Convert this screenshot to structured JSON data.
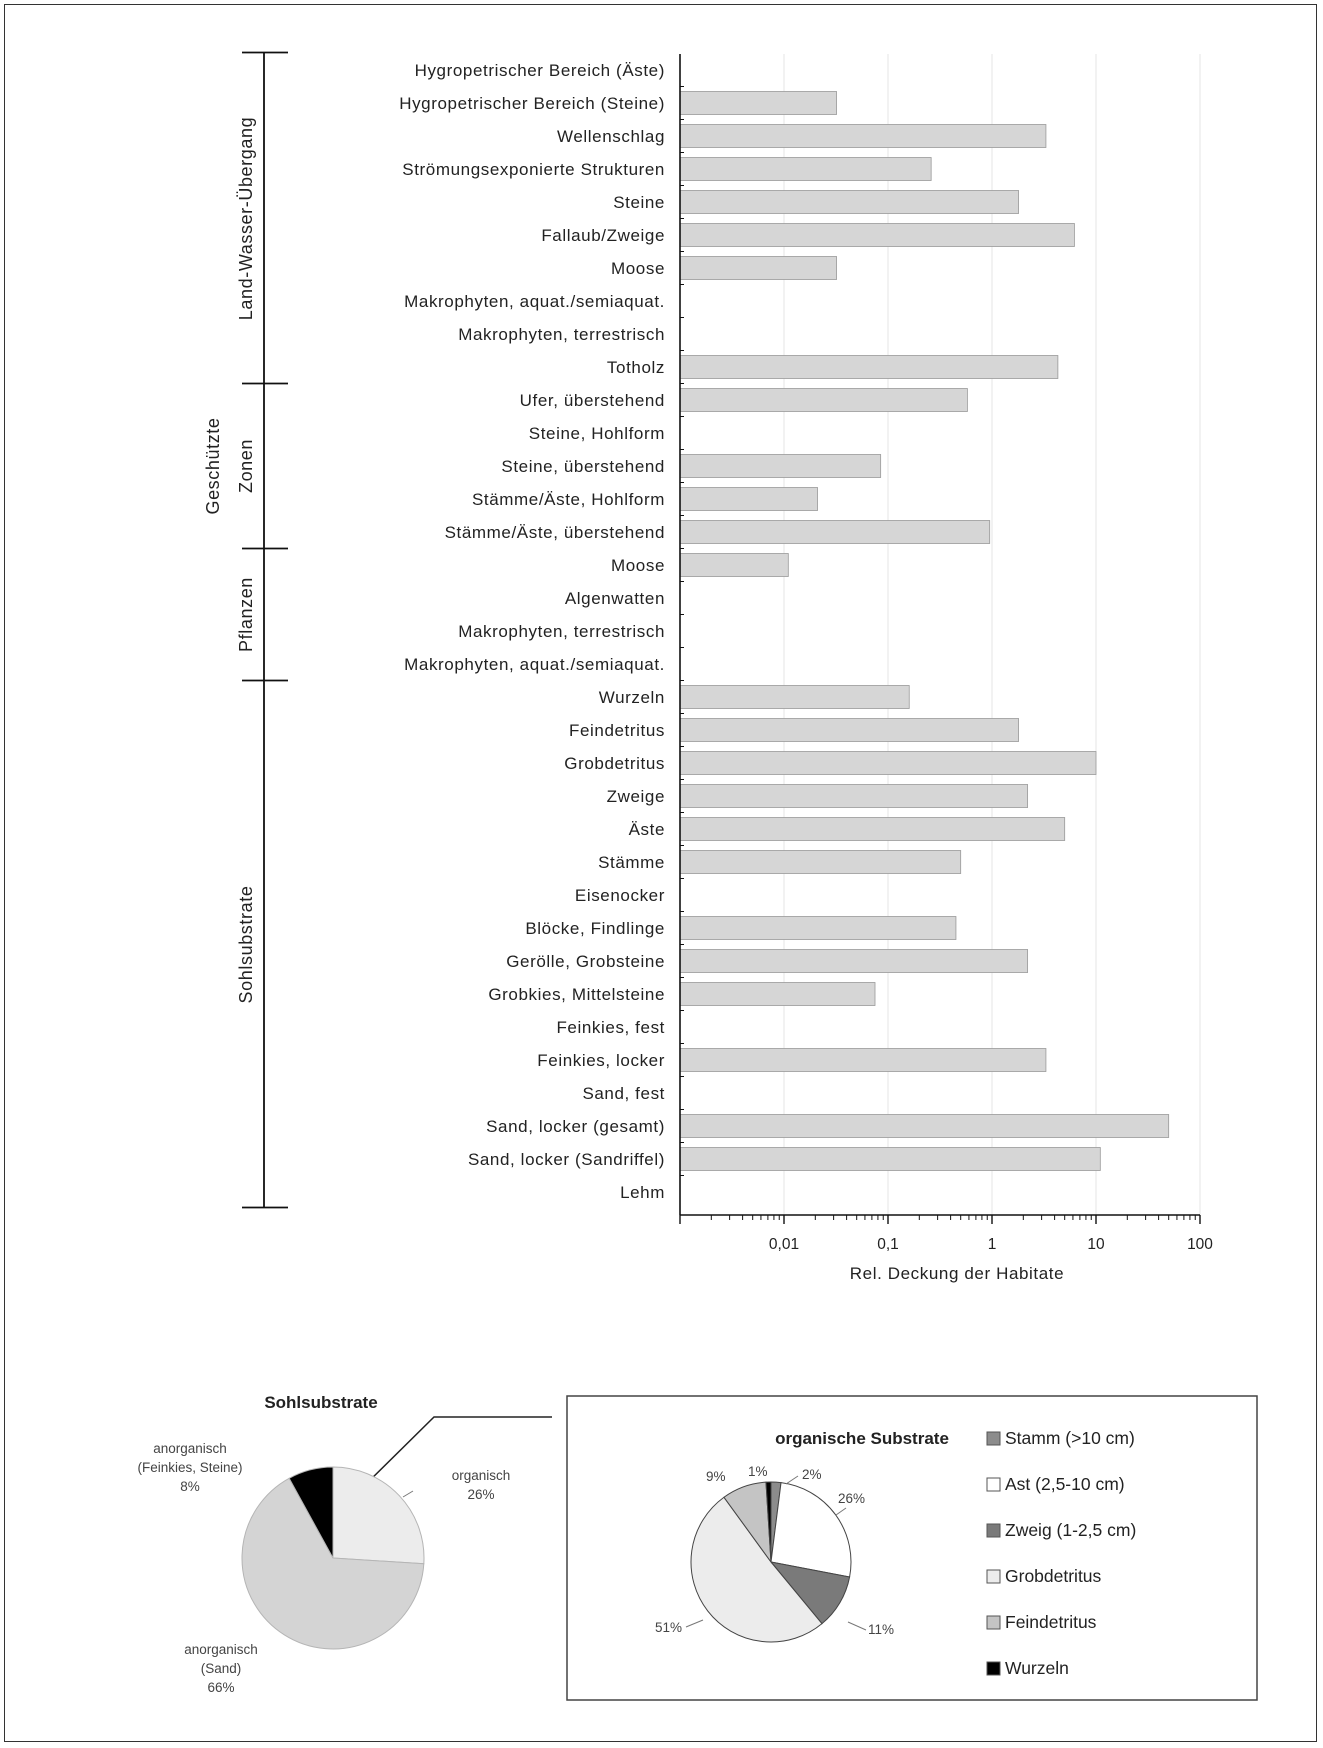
{
  "chart_data": [
    {
      "type": "bar",
      "orientation": "horizontal",
      "xscale": "log",
      "xlim": [
        0.001,
        100
      ],
      "xlabel": "Rel. Deckung der Habitate",
      "xticks": [
        "0,01",
        "0,1",
        "1",
        "10",
        "100"
      ],
      "grid": true,
      "bar_color": "#d6d6d6",
      "groups": [
        {
          "name": "Land-Wasser-Übergang",
          "lines": [
            "Land-Wasser-Übergang"
          ],
          "first": 0,
          "last": 9
        },
        {
          "name": "Geschützte Zonen",
          "lines": [
            "Geschützte",
            "Zonen"
          ],
          "first": 10,
          "last": 14
        },
        {
          "name": "Pflanzen",
          "lines": [
            "Pflanzen"
          ],
          "first": 15,
          "last": 18
        },
        {
          "name": "Sohlsubstrate",
          "lines": [
            "Sohlsubstrate"
          ],
          "first": 19,
          "last": 34
        }
      ],
      "categories": [
        "Hygropetrischer Bereich (Äste)",
        "Hygropetrischer Bereich (Steine)",
        "Wellenschlag",
        "Strömungsexponierte Strukturen",
        "Steine",
        "Fallaub/Zweige",
        "Moose",
        "Makrophyten, aquat./semiaquat.",
        "Makrophyten, terrestrisch",
        "Totholz",
        "Ufer, überstehend",
        "Steine, Hohlform",
        "Steine, überstehend",
        "Stämme/Äste, Hohlform",
        "Stämme/Äste, überstehend",
        "Moose",
        "Algenwatten",
        "Makrophyten, terrestrisch",
        "Makrophyten, aquat./semiaquat.",
        "Wurzeln",
        "Feindetritus",
        "Grobdetritus",
        "Zweige",
        "Äste",
        "Stämme",
        "Eisenocker",
        "Blöcke, Findlinge",
        "Gerölle, Grobsteine",
        "Grobkies, Mittelsteine",
        "Feinkies, fest",
        "Feinkies, locker",
        "Sand, fest",
        "Sand, locker (gesamt)",
        "Sand, locker (Sandriffel)",
        "Lehm"
      ],
      "values": [
        null,
        0.032,
        3.3,
        0.26,
        1.8,
        6.2,
        0.032,
        null,
        null,
        4.3,
        0.58,
        null,
        0.085,
        0.021,
        0.95,
        0.011,
        null,
        null,
        null,
        0.16,
        1.8,
        10.0,
        2.2,
        5.0,
        0.5,
        null,
        0.45,
        2.2,
        0.075,
        null,
        3.3,
        null,
        50.0,
        11.0,
        null
      ]
    },
    {
      "type": "pie",
      "title": "Sohlsubstrate",
      "slices": [
        {
          "label": "organisch",
          "lines": [
            "organisch",
            "26%"
          ],
          "value": 26,
          "color": "#ececec"
        },
        {
          "label": "anorganisch (Sand)",
          "lines": [
            "anorganisch",
            "(Sand)",
            "66%"
          ],
          "value": 66,
          "color": "#d4d4d4"
        },
        {
          "label": "anorganisch (Feinkies, Steine)",
          "lines": [
            "anorganisch",
            "(Feinkies, Steine)",
            "8%"
          ],
          "value": 8,
          "color": "#000000"
        }
      ]
    },
    {
      "type": "pie",
      "title": "organische Substrate",
      "legend_position": "right",
      "slices": [
        {
          "label": "Stamm (>10 cm)",
          "value": 2,
          "pct": "2%",
          "color": "#8c8c8c"
        },
        {
          "label": "Ast (2,5-10 cm)",
          "value": 26,
          "pct": "26%",
          "color": "#ffffff"
        },
        {
          "label": "Zweig (1-2,5 cm)",
          "value": 11,
          "pct": "11%",
          "color": "#7a7a7a"
        },
        {
          "label": "Grobdetritus",
          "value": 51,
          "pct": "51%",
          "color": "#ececec"
        },
        {
          "label": "Feindetritus",
          "value": 9,
          "pct": "9%",
          "color": "#c4c4c4"
        },
        {
          "label": "Wurzeln",
          "value": 1,
          "pct": "1%",
          "color": "#000000"
        }
      ]
    }
  ]
}
